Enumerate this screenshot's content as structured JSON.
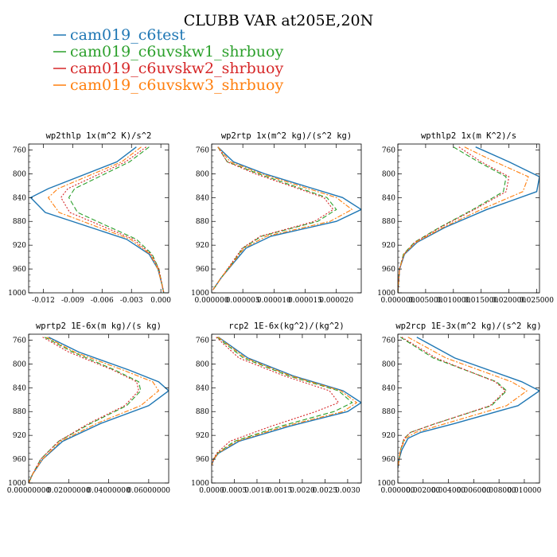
{
  "figure": {
    "title": "CLUBB VAR at205E,20N"
  },
  "legend": [
    {
      "label": "cam019_c6test",
      "color": "#1f77b4",
      "dash": "solid"
    },
    {
      "label": "cam019_c6uvskw1_shrbuoy",
      "color": "#2ca02c",
      "dash": "dashed"
    },
    {
      "label": "cam019_c6uvskw2_shrbuoy",
      "color": "#d62728",
      "dash": "dotted"
    },
    {
      "label": "cam019_c6uvskw3_shrbuoy",
      "color": "#ff7f0e",
      "dash": "dashdot"
    }
  ],
  "chart_data": [
    {
      "type": "line",
      "title": "wp2thlp  1x(m^2 K)/s^2",
      "xlim": [
        -0.0135,
        0.0008
      ],
      "ylim": [
        750,
        1000
      ],
      "y_inverted": true,
      "xticks": [
        -0.012,
        -0.009,
        -0.006,
        -0.003,
        0.0
      ],
      "xtick_labels": [
        "-0.012",
        "-0.009",
        "-0.006",
        "-0.003",
        "0.000"
      ],
      "yticks": [
        760,
        800,
        840,
        880,
        920,
        960,
        1000
      ],
      "y": [
        755,
        780,
        825,
        840,
        865,
        910,
        935,
        960,
        985,
        1000
      ],
      "series": [
        {
          "name": "cam019_c6test",
          "values": [
            -0.0025,
            -0.0045,
            -0.0115,
            -0.0133,
            -0.0118,
            -0.0035,
            -0.0012,
            -0.0003,
            0.0001,
            0.0003
          ]
        },
        {
          "name": "cam019_c6uvskw1_shrbuoy",
          "values": [
            -0.0012,
            -0.0032,
            -0.0088,
            -0.0094,
            -0.0085,
            -0.0025,
            -0.0009,
            -0.0002,
            0.0001,
            0.0003
          ]
        },
        {
          "name": "cam019_c6uvskw2_shrbuoy",
          "values": [
            -0.0015,
            -0.0036,
            -0.0095,
            -0.0102,
            -0.0093,
            -0.0028,
            -0.001,
            -0.0002,
            0.0001,
            0.0003
          ]
        },
        {
          "name": "cam019_c6uvskw3_shrbuoy",
          "values": [
            -0.002,
            -0.004,
            -0.0105,
            -0.0115,
            -0.0104,
            -0.0031,
            -0.0011,
            -0.0003,
            0.0001,
            0.0003
          ]
        }
      ]
    },
    {
      "type": "line",
      "title": "wp2rtp  1x(m^2 kg)/(s^2 kg)",
      "xlim": [
        0,
        2.4e-05
      ],
      "ylim": [
        750,
        1000
      ],
      "y_inverted": true,
      "xticks": [
        0,
        5e-06,
        1e-05,
        1.5e-05,
        2e-05
      ],
      "xtick_labels": [
        "0.000000",
        "0.000005",
        "0.000010",
        "0.000015",
        "0.000020"
      ],
      "yticks": [
        760,
        800,
        840,
        880,
        920,
        960,
        1000
      ],
      "y": [
        755,
        780,
        800,
        840,
        860,
        880,
        905,
        925,
        950,
        975,
        995
      ],
      "series": [
        {
          "name": "cam019_c6test",
          "values": [
            1e-06,
            3.5e-06,
            8.5e-06,
            2.1e-05,
            2.4e-05,
            2e-05,
            9.5e-06,
            5.5e-06,
            3.5e-06,
            1.5e-06,
            2e-07
          ]
        },
        {
          "name": "cam019_c6uvskw1_shrbuoy",
          "values": [
            1e-06,
            2.5e-06,
            7.5e-06,
            1.85e-05,
            2e-05,
            1.7e-05,
            8e-06,
            5e-06,
            3.3e-06,
            1.5e-06,
            2e-07
          ]
        },
        {
          "name": "cam019_c6uvskw2_shrbuoy",
          "values": [
            1e-06,
            2.5e-06,
            7e-06,
            1.8e-05,
            1.95e-05,
            1.65e-05,
            7.8e-06,
            4.9e-06,
            3.2e-06,
            1.5e-06,
            2e-07
          ]
        },
        {
          "name": "cam019_c6uvskw3_shrbuoy",
          "values": [
            1e-06,
            3e-06,
            8e-06,
            2e-05,
            2.25e-05,
            1.9e-05,
            8.8e-06,
            5.2e-06,
            3.4e-06,
            1.5e-06,
            2e-07
          ]
        }
      ]
    },
    {
      "type": "line",
      "title": "wpthlp2  1x(m K^2)/s",
      "xlim": [
        0,
        0.0255
      ],
      "ylim": [
        750,
        1000
      ],
      "y_inverted": true,
      "xticks": [
        0,
        0.005,
        0.01,
        0.015,
        0.02,
        0.025
      ],
      "xtick_labels": [
        "0.000000",
        "0.005000",
        "0.010000",
        "0.015000",
        "0.020000",
        "0.025000"
      ],
      "yticks": [
        760,
        800,
        840,
        880,
        920,
        960,
        1000
      ],
      "y": [
        755,
        780,
        805,
        830,
        860,
        890,
        915,
        935,
        960,
        985,
        1000
      ],
      "series": [
        {
          "name": "cam019_c6test",
          "values": [
            0.014,
            0.02,
            0.0255,
            0.025,
            0.016,
            0.0085,
            0.0035,
            0.0012,
            0.0003,
            0.0001,
            0.0
          ]
        },
        {
          "name": "cam019_c6uvskw1_shrbuoy",
          "values": [
            0.01,
            0.0145,
            0.0195,
            0.019,
            0.0135,
            0.0075,
            0.003,
            0.001,
            0.0003,
            0.0001,
            0.0
          ]
        },
        {
          "name": "cam019_c6uvskw2_shrbuoy",
          "values": [
            0.011,
            0.015,
            0.02,
            0.0195,
            0.0138,
            0.0077,
            0.0031,
            0.0011,
            0.0003,
            0.0001,
            0.0
          ]
        },
        {
          "name": "cam019_c6uvskw3_shrbuoy",
          "values": [
            0.012,
            0.0175,
            0.0235,
            0.0225,
            0.015,
            0.0082,
            0.0033,
            0.0011,
            0.0003,
            0.0001,
            0.0
          ]
        }
      ]
    },
    {
      "type": "line",
      "title": "wprtp2  1E-6x(m kg)/(s kg)",
      "xlim": [
        0,
        0.07
      ],
      "ylim": [
        750,
        1000
      ],
      "y_inverted": true,
      "xticks": [
        0,
        0.02,
        0.04,
        0.06
      ],
      "xtick_labels": [
        "0.00000000",
        "0.02000000",
        "0.04000000",
        "0.06000000"
      ],
      "yticks": [
        760,
        800,
        840,
        880,
        920,
        960,
        1000
      ],
      "y": [
        755,
        780,
        810,
        830,
        845,
        870,
        900,
        930,
        960,
        985,
        1000
      ],
      "series": [
        {
          "name": "cam019_c6test",
          "values": [
            0.01,
            0.025,
            0.05,
            0.065,
            0.07,
            0.06,
            0.036,
            0.017,
            0.007,
            0.002,
            0.0
          ]
        },
        {
          "name": "cam019_c6uvskw1_shrbuoy",
          "values": [
            0.008,
            0.022,
            0.043,
            0.055,
            0.056,
            0.049,
            0.031,
            0.015,
            0.006,
            0.002,
            0.0
          ]
        },
        {
          "name": "cam019_c6uvskw2_shrbuoy",
          "values": [
            0.007,
            0.02,
            0.042,
            0.054,
            0.055,
            0.048,
            0.03,
            0.015,
            0.006,
            0.002,
            0.0
          ]
        },
        {
          "name": "cam019_c6uvskw3_shrbuoy",
          "values": [
            0.009,
            0.023,
            0.047,
            0.062,
            0.065,
            0.056,
            0.034,
            0.016,
            0.007,
            0.002,
            0.0
          ]
        }
      ]
    },
    {
      "type": "line",
      "title": "rcp2  1E-6x(kg^2)/(kg^2)",
      "xlim": [
        0,
        0.0033
      ],
      "ylim": [
        750,
        1000
      ],
      "y_inverted": true,
      "xticks": [
        0,
        0.0005,
        0.001,
        0.0015,
        0.002,
        0.0025,
        0.003
      ],
      "xtick_labels": [
        "0.0000",
        "0.0005",
        "0.0010",
        "0.0015",
        "0.0020",
        "0.0025",
        "0.0030"
      ],
      "yticks": [
        760,
        800,
        840,
        880,
        920,
        960,
        1000
      ],
      "y": [
        755,
        790,
        820,
        845,
        865,
        880,
        905,
        930,
        950,
        960,
        970
      ],
      "series": [
        {
          "name": "cam019_c6test",
          "values": [
            0.00015,
            0.0008,
            0.0018,
            0.0029,
            0.0033,
            0.003,
            0.0017,
            0.0006,
            0.00015,
            5e-05,
            0.0
          ]
        },
        {
          "name": "cam019_c6uvskw1_shrbuoy",
          "values": [
            0.00012,
            0.0007,
            0.0017,
            0.0028,
            0.0031,
            0.0027,
            0.0015,
            0.0005,
            0.00013,
            4e-05,
            0.0
          ]
        },
        {
          "name": "cam019_c6uvskw2_shrbuoy",
          "values": [
            0.0001,
            0.0006,
            0.0016,
            0.0026,
            0.0028,
            0.0023,
            0.0013,
            0.0004,
            0.00011,
            4e-05,
            0.0
          ]
        },
        {
          "name": "cam019_c6uvskw3_shrbuoy",
          "values": [
            0.00014,
            0.00075,
            0.00175,
            0.00285,
            0.0032,
            0.0029,
            0.0016,
            0.00055,
            0.00014,
            5e-05,
            0.0
          ]
        }
      ]
    },
    {
      "type": "line",
      "title": "wp2rcp  1E-3x(m^2 kg)/(s^2 kg)",
      "xlim": [
        0,
        0.0112
      ],
      "ylim": [
        750,
        1000
      ],
      "y_inverted": true,
      "xticks": [
        0,
        0.002,
        0.004,
        0.006,
        0.008,
        0.01
      ],
      "xtick_labels": [
        "0.000000",
        "0.002000",
        "0.004000",
        "0.006000",
        "0.008000",
        "0.010000"
      ],
      "yticks": [
        760,
        800,
        840,
        880,
        920,
        960,
        1000
      ],
      "y": [
        755,
        790,
        830,
        845,
        870,
        900,
        915,
        925,
        945,
        960,
        975
      ],
      "series": [
        {
          "name": "cam019_c6test",
          "values": [
            0.0015,
            0.0045,
            0.0098,
            0.0112,
            0.0095,
            0.0045,
            0.0018,
            0.0008,
            0.0003,
            0.0001,
            0.0
          ]
        },
        {
          "name": "cam019_c6uvskw1_shrbuoy",
          "values": [
            0.0002,
            0.0028,
            0.0078,
            0.0086,
            0.0074,
            0.003,
            0.001,
            0.0005,
            0.0002,
            0.0001,
            0.0
          ]
        },
        {
          "name": "cam019_c6uvskw2_shrbuoy",
          "values": [
            0.0003,
            0.003,
            0.0077,
            0.0085,
            0.0073,
            0.003,
            0.001,
            0.0005,
            0.0002,
            0.0001,
            0.0
          ]
        },
        {
          "name": "cam019_c6uvskw3_shrbuoy",
          "values": [
            0.0008,
            0.0038,
            0.009,
            0.0102,
            0.0086,
            0.0038,
            0.0014,
            0.0006,
            0.0002,
            0.0001,
            0.0
          ]
        }
      ]
    }
  ]
}
